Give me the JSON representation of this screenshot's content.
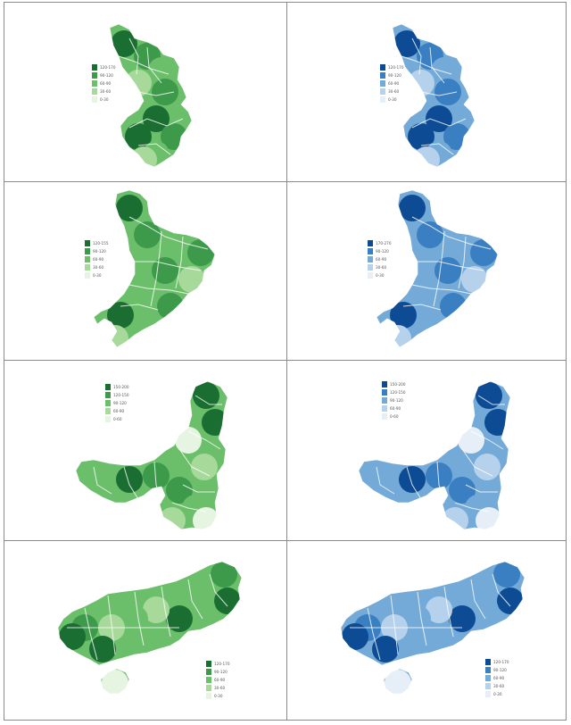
{
  "palettes": {
    "green": [
      "#1b6e32",
      "#3c9a4a",
      "#6cbf6a",
      "#a7d99a",
      "#e6f4e2"
    ],
    "blue": [
      "#0d4c94",
      "#3a7fc1",
      "#74aad8",
      "#b5d1ec",
      "#e6eff8"
    ]
  },
  "panels": [
    {
      "id": "r1-left",
      "palette": "green",
      "region": "east",
      "legend": [
        "120-170",
        "90-120",
        "60-90",
        "30-60",
        "0-30"
      ]
    },
    {
      "id": "r1-right",
      "palette": "blue",
      "region": "east",
      "legend": [
        "120-170",
        "90-120",
        "60-90",
        "30-60",
        "0-30"
      ]
    },
    {
      "id": "r2-left",
      "palette": "green",
      "region": "northeast",
      "legend": [
        "120-155",
        "90-120",
        "60-90",
        "30-60",
        "0-30"
      ]
    },
    {
      "id": "r2-right",
      "palette": "blue",
      "region": "northeast",
      "legend": [
        "170-270",
        "90-120",
        "60-90",
        "30-60",
        "0-30"
      ]
    },
    {
      "id": "r3-left",
      "palette": "green",
      "region": "north",
      "legend": [
        "150-200",
        "120-150",
        "90-120",
        "60-90",
        "0-60"
      ]
    },
    {
      "id": "r3-right",
      "palette": "blue",
      "region": "north",
      "legend": [
        "150-200",
        "120-150",
        "90-120",
        "60-90",
        "0-60"
      ]
    },
    {
      "id": "r4-left",
      "palette": "green",
      "region": "south",
      "legend": [
        "120-170",
        "90-120",
        "60-90",
        "30-60",
        "0-30"
      ]
    },
    {
      "id": "r4-right",
      "palette": "blue",
      "region": "south",
      "legend": [
        "120-170",
        "90-120",
        "60-90",
        "30-60",
        "0-30"
      ]
    }
  ]
}
